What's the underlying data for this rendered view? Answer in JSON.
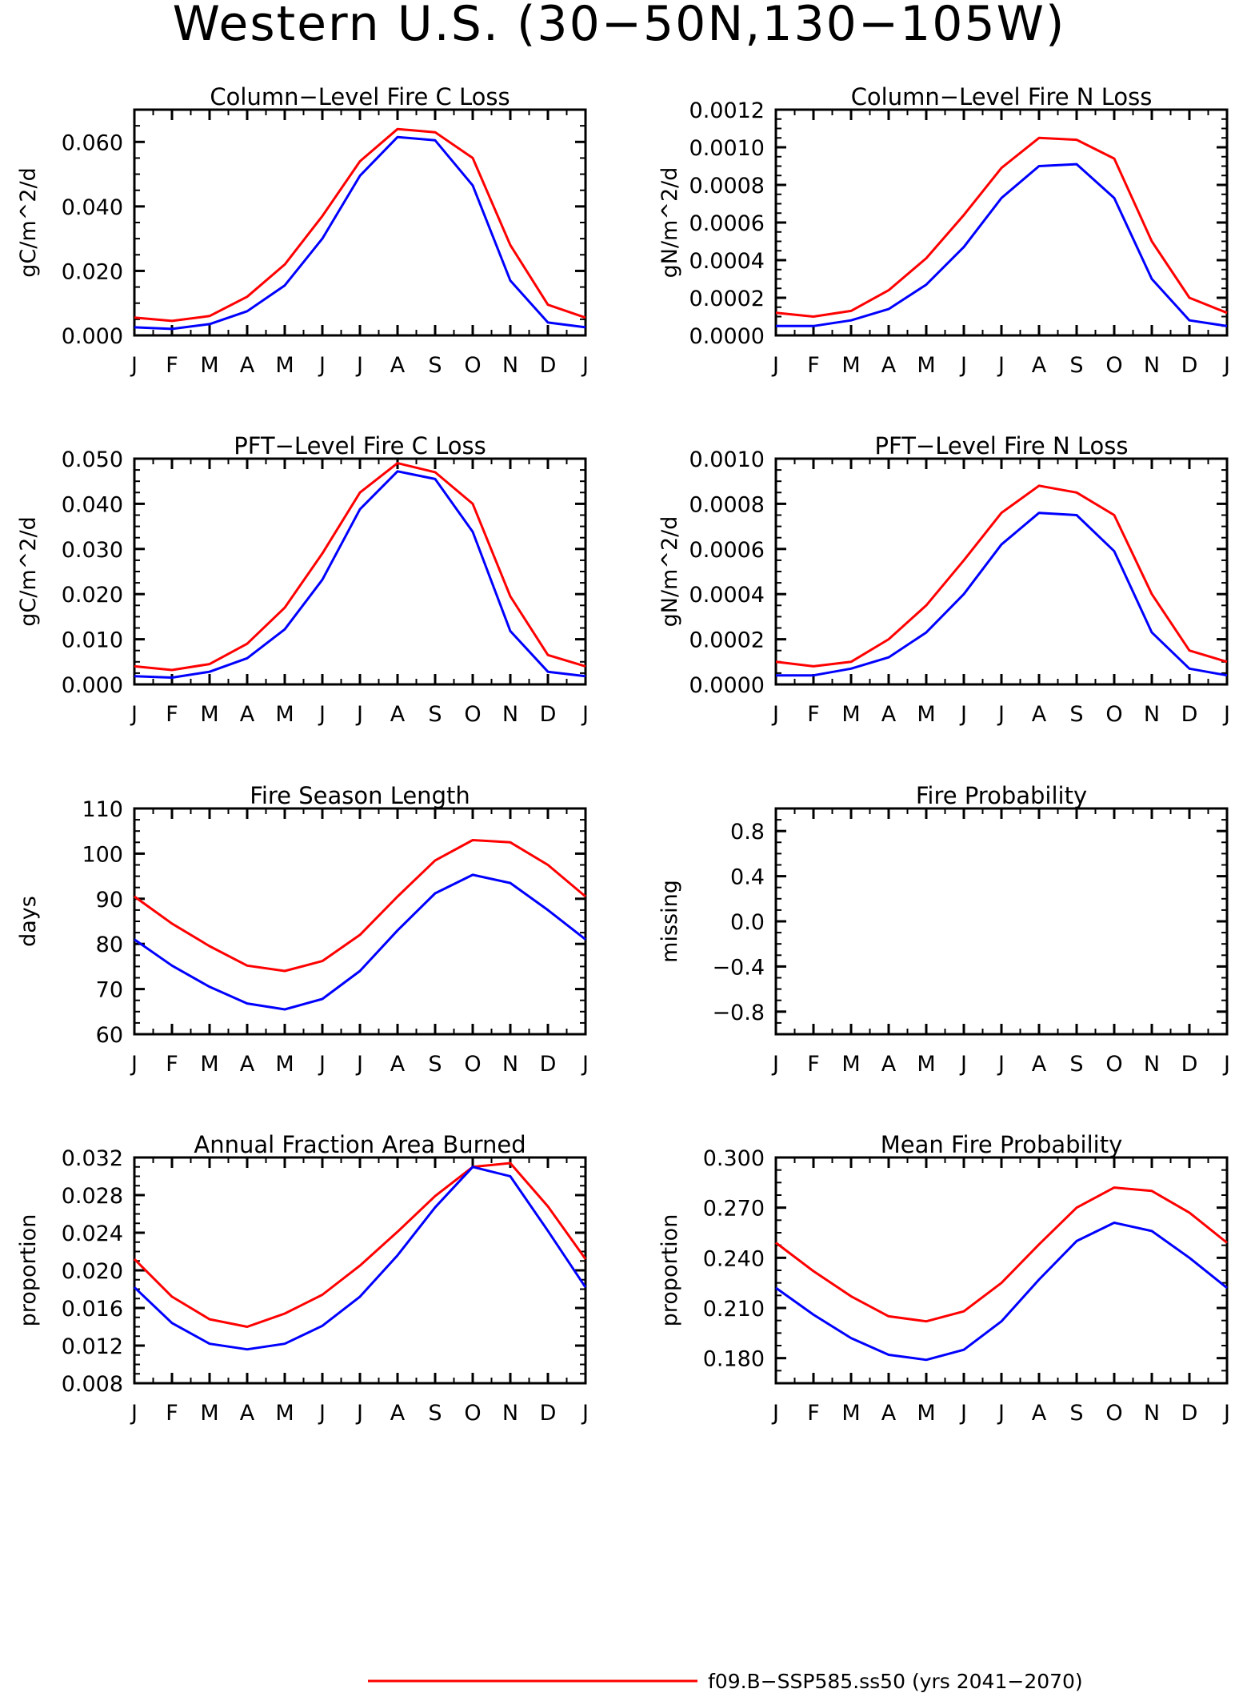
{
  "figure": {
    "title": "Western U.S. (30−50N,130−105W)",
    "legend": {
      "label": "f09.B−SSP585.ss50 (yrs 2041−2070)",
      "color": "#ff0000"
    }
  },
  "series_colors": [
    "#ff0000",
    "#0000ff"
  ],
  "chart_data": [
    {
      "type": "line",
      "title": "Column−Level Fire C Loss",
      "ylabel": "gC/m^2/d",
      "categories": [
        "J",
        "F",
        "M",
        "A",
        "M",
        "J",
        "J",
        "A",
        "S",
        "O",
        "N",
        "D",
        "J"
      ],
      "ylim": [
        0,
        0.07
      ],
      "yticks": [
        0,
        0.02,
        0.04,
        0.06
      ],
      "ytick_labels": [
        "0.000",
        "0.020",
        "0.040",
        "0.060"
      ],
      "series": [
        {
          "values": [
            0.0055,
            0.0045,
            0.006,
            0.012,
            0.022,
            0.037,
            0.054,
            0.064,
            0.063,
            0.055,
            0.028,
            0.0095,
            0.0055
          ]
        },
        {
          "values": [
            0.0025,
            0.002,
            0.0035,
            0.0075,
            0.0155,
            0.03,
            0.0495,
            0.0615,
            0.0605,
            0.0465,
            0.017,
            0.004,
            0.0025
          ]
        }
      ]
    },
    {
      "type": "line",
      "title": "Column−Level Fire N Loss",
      "ylabel": "gN/m^2/d",
      "categories": [
        "J",
        "F",
        "M",
        "A",
        "M",
        "J",
        "J",
        "A",
        "S",
        "O",
        "N",
        "D",
        "J"
      ],
      "ylim": [
        0,
        0.0012
      ],
      "yticks": [
        0,
        0.0002,
        0.0004,
        0.0006,
        0.0008,
        0.001,
        0.0012
      ],
      "ytick_labels": [
        "0.0000",
        "0.0002",
        "0.0004",
        "0.0006",
        "0.0008",
        "0.0010",
        "0.0012"
      ],
      "series": [
        {
          "values": [
            0.00012,
            0.0001,
            0.00013,
            0.00024,
            0.00041,
            0.00064,
            0.00089,
            0.00105,
            0.00104,
            0.00094,
            0.0005,
            0.0002,
            0.00012
          ]
        },
        {
          "values": [
            5e-05,
            5e-05,
            8e-05,
            0.00014,
            0.00027,
            0.00047,
            0.00073,
            0.0009,
            0.00091,
            0.00073,
            0.0003,
            8e-05,
            5e-05
          ]
        }
      ]
    },
    {
      "type": "line",
      "title": "PFT−Level Fire C Loss",
      "ylabel": "gC/m^2/d",
      "categories": [
        "J",
        "F",
        "M",
        "A",
        "M",
        "J",
        "J",
        "A",
        "S",
        "O",
        "N",
        "D",
        "J"
      ],
      "ylim": [
        0,
        0.05
      ],
      "yticks": [
        0,
        0.01,
        0.02,
        0.03,
        0.04,
        0.05
      ],
      "ytick_labels": [
        "0.000",
        "0.010",
        "0.020",
        "0.030",
        "0.040",
        "0.050"
      ],
      "series": [
        {
          "values": [
            0.004,
            0.0032,
            0.0045,
            0.009,
            0.017,
            0.029,
            0.0425,
            0.049,
            0.047,
            0.04,
            0.0195,
            0.0065,
            0.004
          ]
        },
        {
          "values": [
            0.0018,
            0.0015,
            0.0028,
            0.0058,
            0.0122,
            0.0232,
            0.0388,
            0.0472,
            0.0455,
            0.0338,
            0.0118,
            0.0028,
            0.0018
          ]
        }
      ]
    },
    {
      "type": "line",
      "title": "PFT−Level Fire N Loss",
      "ylabel": "gN/m^2/d",
      "categories": [
        "J",
        "F",
        "M",
        "A",
        "M",
        "J",
        "J",
        "A",
        "S",
        "O",
        "N",
        "D",
        "J"
      ],
      "ylim": [
        0,
        0.001
      ],
      "yticks": [
        0,
        0.0002,
        0.0004,
        0.0006,
        0.0008,
        0.001
      ],
      "ytick_labels": [
        "0.0000",
        "0.0002",
        "0.0004",
        "0.0006",
        "0.0008",
        "0.0010"
      ],
      "series": [
        {
          "values": [
            0.0001,
            8e-05,
            0.0001,
            0.0002,
            0.00035,
            0.00055,
            0.00076,
            0.00088,
            0.00085,
            0.00075,
            0.0004,
            0.00015,
            0.0001
          ]
        },
        {
          "values": [
            4e-05,
            4e-05,
            7e-05,
            0.00012,
            0.00023,
            0.0004,
            0.00062,
            0.00076,
            0.00075,
            0.00059,
            0.00023,
            7e-05,
            4e-05
          ]
        }
      ]
    },
    {
      "type": "line",
      "title": "Fire Season Length",
      "ylabel": "days",
      "categories": [
        "J",
        "F",
        "M",
        "A",
        "M",
        "J",
        "J",
        "A",
        "S",
        "O",
        "N",
        "D",
        "J"
      ],
      "ylim": [
        60,
        110
      ],
      "yticks": [
        60,
        70,
        80,
        90,
        100,
        110
      ],
      "ytick_labels": [
        "60",
        "70",
        "80",
        "90",
        "100",
        "110"
      ],
      "series": [
        {
          "values": [
            90.5,
            84.5,
            79.5,
            75.2,
            74,
            76.2,
            82,
            90.5,
            98.5,
            103,
            102.5,
            97.5,
            90.5
          ]
        },
        {
          "values": [
            81,
            75.2,
            70.5,
            66.8,
            65.5,
            67.8,
            74,
            83,
            91.2,
            95.3,
            93.5,
            87.5,
            81
          ]
        }
      ]
    },
    {
      "type": "line",
      "title": "Fire Probability",
      "ylabel": "missing",
      "categories": [
        "J",
        "F",
        "M",
        "A",
        "M",
        "J",
        "J",
        "A",
        "S",
        "O",
        "N",
        "D",
        "J"
      ],
      "ylim": [
        -1,
        1
      ],
      "yticks": [
        -0.8,
        -0.4,
        0,
        0.4,
        0.8
      ],
      "ytick_labels": [
        "−0.8",
        "−0.4",
        "0.0",
        "0.4",
        "0.8"
      ],
      "series": []
    },
    {
      "type": "line",
      "title": "Annual Fraction Area Burned",
      "ylabel": "proportion",
      "categories": [
        "J",
        "F",
        "M",
        "A",
        "M",
        "J",
        "J",
        "A",
        "S",
        "O",
        "N",
        "D",
        "J"
      ],
      "ylim": [
        0.008,
        0.032
      ],
      "yticks": [
        0.008,
        0.012,
        0.016,
        0.02,
        0.024,
        0.028,
        0.032
      ],
      "ytick_labels": [
        "0.008",
        "0.012",
        "0.016",
        "0.020",
        "0.024",
        "0.028",
        "0.032"
      ],
      "series": [
        {
          "values": [
            0.0212,
            0.0172,
            0.0148,
            0.014,
            0.0154,
            0.0174,
            0.0205,
            0.0241,
            0.0279,
            0.031,
            0.0314,
            0.0268,
            0.0212
          ]
        },
        {
          "values": [
            0.0182,
            0.0144,
            0.0122,
            0.0116,
            0.0122,
            0.0141,
            0.0172,
            0.0216,
            0.0267,
            0.031,
            0.03,
            0.0242,
            0.0182
          ]
        }
      ]
    },
    {
      "type": "line",
      "title": "Mean Fire Probability",
      "ylabel": "proportion",
      "categories": [
        "J",
        "F",
        "M",
        "A",
        "M",
        "J",
        "J",
        "A",
        "S",
        "O",
        "N",
        "D",
        "J"
      ],
      "ylim": [
        0.165,
        0.3
      ],
      "yticks": [
        0.18,
        0.21,
        0.24,
        0.27,
        0.3
      ],
      "ytick_labels": [
        "0.180",
        "0.210",
        "0.240",
        "0.270",
        "0.300"
      ],
      "series": [
        {
          "values": [
            0.249,
            0.232,
            0.217,
            0.205,
            0.202,
            0.208,
            0.225,
            0.248,
            0.27,
            0.282,
            0.28,
            0.267,
            0.249
          ]
        },
        {
          "values": [
            0.222,
            0.206,
            0.192,
            0.182,
            0.179,
            0.185,
            0.202,
            0.227,
            0.25,
            0.261,
            0.256,
            0.24,
            0.222
          ]
        }
      ]
    }
  ]
}
